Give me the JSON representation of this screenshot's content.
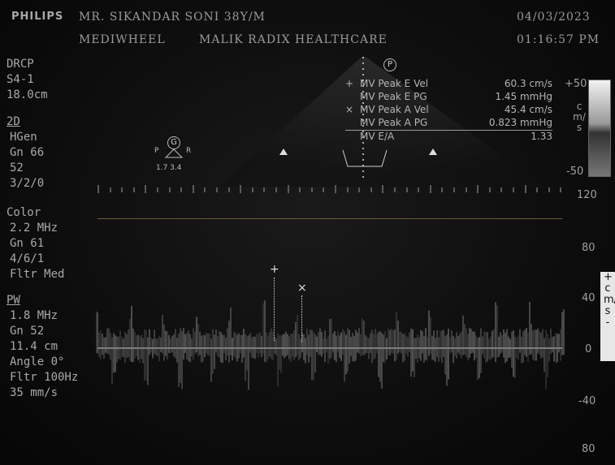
{
  "header": {
    "brand": "PHILIPS",
    "patient": "MR. SIKANDAR SONI 38Y/M",
    "date": "04/03/2023",
    "referrer": "MEDIWHEEL",
    "facility": "MALIK RADIX HEALTHCARE",
    "time": "01:16:57 PM"
  },
  "left_panel": {
    "preset": "DRCP",
    "probe": "S4-1",
    "depth": "18.0cm",
    "mode_2d": "2D",
    "hgen": "HGen",
    "gn": "Gn 66",
    "val52": "52",
    "val320": "3/2/0",
    "color_title": "Color",
    "color_freq": "2.2 MHz",
    "color_gn": "Gn 61",
    "color_val": "4/6/1",
    "color_fltr": "Fltr Med",
    "pw_title": "PW",
    "pw_freq": "1.8 MHz",
    "pw_gn": "Gn 52",
    "pw_depth": "11.4 cm",
    "pw_angle": "Angle 0°",
    "pw_fltr": "Fltr 100Hz",
    "pw_sweep": "35 mm/s"
  },
  "measurements": [
    {
      "marker": "+",
      "label": "MV Peak E Vel",
      "value": "60.3 cm/s"
    },
    {
      "marker": "",
      "label": "MV Peak E PG",
      "value": "1.45 mmHg"
    },
    {
      "marker": "×",
      "label": "MV Peak A Vel",
      "value": "45.4 cm/s"
    },
    {
      "marker": "",
      "label": "MV Peak A PG",
      "value": "0.823 mmHg"
    },
    {
      "marker": "",
      "label": "MV E/A",
      "value": "1.33"
    }
  ],
  "colorbar": {
    "top": "+50",
    "unit": "cm/s",
    "bottom": "-50"
  },
  "doppler_scale": {
    "unit": "+cm/s-",
    "labels": [
      "120",
      "80",
      "40",
      "0",
      "-40",
      "80"
    ]
  },
  "markers": {
    "p_label": "P",
    "g_label": "G",
    "pr_p": "P",
    "pr_r": "R",
    "pr_values": "1.7 3.4"
  },
  "colors": {
    "background": "#0a0a0a",
    "text": "#b9b9b9",
    "baseline": "#7d7d7d"
  }
}
